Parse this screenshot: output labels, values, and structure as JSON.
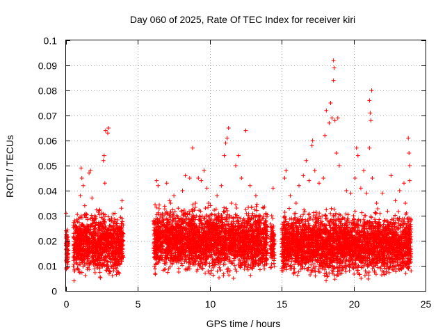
{
  "chart_data": {
    "type": "scatter",
    "title": "Day 060 of 2025, Rate Of TEC Index for receiver kiri",
    "xlabel": "GPS time / hours",
    "ylabel": "ROTI / TECUs",
    "xlim": [
      0,
      25
    ],
    "ylim": [
      0,
      0.1
    ],
    "x_ticks": [
      "0",
      "5",
      "10",
      "15",
      "20",
      "25"
    ],
    "y_ticks": [
      "0",
      "0.01",
      "0.02",
      "0.03",
      "0.04",
      "0.05",
      "0.06",
      "0.07",
      "0.08",
      "0.09",
      "0.1"
    ],
    "grid": true,
    "marker": "+",
    "color": "#ff0000",
    "series": [
      {
        "name": "ROTI",
        "points": [
          [
            0.0,
            0.031
          ],
          [
            0.0,
            0.024
          ],
          [
            0.0,
            0.019
          ],
          [
            0.0,
            0.012
          ],
          [
            0.05,
            0.009
          ],
          [
            0.1,
            0.016
          ],
          [
            0.1,
            0.02
          ],
          [
            0.55,
            0.004
          ],
          [
            0.6,
            0.008
          ],
          [
            0.7,
            0.015
          ],
          [
            0.8,
            0.022
          ],
          [
            0.9,
            0.029
          ],
          [
            1.0,
            0.038
          ],
          [
            1.05,
            0.049
          ],
          [
            1.1,
            0.045
          ],
          [
            1.2,
            0.042
          ],
          [
            1.3,
            0.034
          ],
          [
            1.5,
            0.025
          ],
          [
            1.6,
            0.047
          ],
          [
            1.7,
            0.048
          ],
          [
            1.8,
            0.037
          ],
          [
            2.0,
            0.03
          ],
          [
            2.2,
            0.019
          ],
          [
            2.4,
            0.027
          ],
          [
            2.6,
            0.052
          ],
          [
            2.65,
            0.054
          ],
          [
            2.7,
            0.043
          ],
          [
            2.75,
            0.064
          ],
          [
            2.9,
            0.063
          ],
          [
            2.95,
            0.065
          ],
          [
            3.0,
            0.022
          ],
          [
            3.3,
            0.014
          ],
          [
            3.6,
            0.01
          ],
          [
            3.9,
            0.036
          ],
          [
            3.85,
            0.033
          ],
          [
            6.2,
            0.007
          ],
          [
            6.3,
            0.044
          ],
          [
            6.4,
            0.042
          ],
          [
            6.6,
            0.03
          ],
          [
            7.0,
            0.043
          ],
          [
            7.2,
            0.036
          ],
          [
            7.5,
            0.038
          ],
          [
            7.8,
            0.033
          ],
          [
            8.1,
            0.04
          ],
          [
            8.3,
            0.046
          ],
          [
            8.6,
            0.045
          ],
          [
            8.8,
            0.057
          ],
          [
            9.0,
            0.035
          ],
          [
            9.2,
            0.045
          ],
          [
            9.4,
            0.044
          ],
          [
            9.6,
            0.048
          ],
          [
            9.8,
            0.041
          ],
          [
            10.0,
            0.03
          ],
          [
            10.5,
            0.038
          ],
          [
            10.8,
            0.042
          ],
          [
            11.0,
            0.054
          ],
          [
            11.1,
            0.059
          ],
          [
            11.2,
            0.061
          ],
          [
            11.3,
            0.065
          ],
          [
            11.5,
            0.035
          ],
          [
            11.8,
            0.05
          ],
          [
            12.0,
            0.054
          ],
          [
            12.2,
            0.045
          ],
          [
            12.5,
            0.064
          ],
          [
            12.8,
            0.042
          ],
          [
            13.2,
            0.038
          ],
          [
            13.5,
            0.03
          ],
          [
            13.9,
            0.031
          ],
          [
            14.4,
            0.041
          ],
          [
            14.3,
            0.03
          ],
          [
            14.35,
            0.025
          ],
          [
            15.1,
            0.011
          ],
          [
            15.2,
            0.045
          ],
          [
            15.3,
            0.048
          ],
          [
            15.6,
            0.038
          ],
          [
            16.0,
            0.035
          ],
          [
            16.2,
            0.042
          ],
          [
            16.5,
            0.046
          ],
          [
            16.7,
            0.052
          ],
          [
            16.9,
            0.044
          ],
          [
            17.1,
            0.058
          ],
          [
            17.15,
            0.06
          ],
          [
            17.3,
            0.048
          ],
          [
            17.6,
            0.043
          ],
          [
            17.9,
            0.045
          ],
          [
            18.0,
            0.062
          ],
          [
            18.1,
            0.072
          ],
          [
            18.3,
            0.067
          ],
          [
            18.4,
            0.075
          ],
          [
            18.5,
            0.069
          ],
          [
            18.6,
            0.084
          ],
          [
            18.6,
            0.092
          ],
          [
            18.65,
            0.089
          ],
          [
            18.7,
            0.068
          ],
          [
            18.8,
            0.055
          ],
          [
            18.9,
            0.069
          ],
          [
            19.0,
            0.05
          ],
          [
            19.5,
            0.04
          ],
          [
            19.8,
            0.039
          ],
          [
            20.1,
            0.045
          ],
          [
            20.2,
            0.057
          ],
          [
            20.3,
            0.054
          ],
          [
            20.5,
            0.041
          ],
          [
            20.7,
            0.048
          ],
          [
            20.9,
            0.039
          ],
          [
            21.1,
            0.076
          ],
          [
            21.15,
            0.071
          ],
          [
            21.2,
            0.068
          ],
          [
            21.25,
            0.08
          ],
          [
            21.1,
            0.057
          ],
          [
            21.3,
            0.045
          ],
          [
            21.6,
            0.035
          ],
          [
            22.0,
            0.039
          ],
          [
            22.3,
            0.028
          ],
          [
            22.6,
            0.046
          ],
          [
            22.9,
            0.036
          ],
          [
            23.2,
            0.04
          ],
          [
            23.5,
            0.043
          ],
          [
            23.6,
            0.035
          ],
          [
            23.8,
            0.061
          ],
          [
            23.85,
            0.055
          ],
          [
            23.9,
            0.05
          ],
          [
            23.9,
            0.044
          ],
          [
            24.0,
            0.008
          ]
        ],
        "dense_segments": [
          {
            "x_start": 0.0,
            "x_end": 0.15,
            "y_min": 0.006,
            "y_max": 0.026,
            "approx_count": 80
          },
          {
            "x_start": 0.5,
            "x_end": 4.0,
            "y_min": 0.003,
            "y_max": 0.033,
            "approx_count": 1200
          },
          {
            "x_start": 6.1,
            "x_end": 14.0,
            "y_min": 0.004,
            "y_max": 0.035,
            "approx_count": 2800
          },
          {
            "x_start": 14.2,
            "x_end": 14.5,
            "y_min": 0.006,
            "y_max": 0.03,
            "approx_count": 100
          },
          {
            "x_start": 15.0,
            "x_end": 24.0,
            "y_min": 0.003,
            "y_max": 0.033,
            "approx_count": 3200
          }
        ]
      }
    ]
  }
}
